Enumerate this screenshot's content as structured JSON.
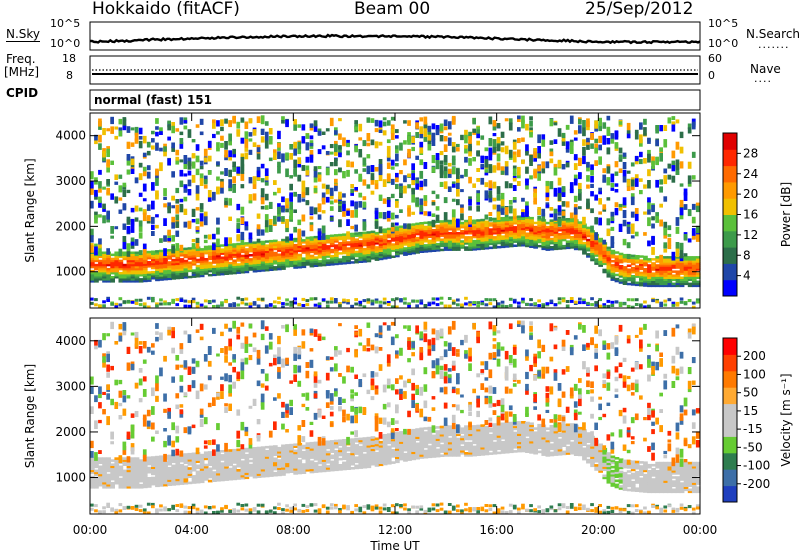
{
  "header": {
    "station": "Hokkaido (fitACF)",
    "beam": "Beam 00",
    "date": "25/Sep/2012"
  },
  "sky_panel": {
    "left_label": "N.Sky",
    "right_label": "N.Search",
    "left_ticks": [
      "10^5",
      "10^0"
    ],
    "right_ticks": [
      "10^5",
      "10^0"
    ]
  },
  "freq_panel": {
    "left_label_line1": "Freq.",
    "left_label_line2": "[MHz]",
    "right_label": "Nave",
    "left_ticks": [
      "18",
      "8"
    ],
    "right_ticks": [
      "60",
      "0"
    ]
  },
  "cpid_panel": {
    "label": "CPID",
    "value": "normal (fast) 151"
  },
  "chart_data": [
    {
      "type": "heatmap",
      "name": "power",
      "ylabel": "Slant Range [km]",
      "ylim": [
        200,
        4500
      ],
      "y_ticks": [
        1000,
        2000,
        3000,
        4000
      ],
      "colorbar_title": "Power [dB]",
      "colorbar_ticks": [
        "28",
        "24",
        "20",
        "16",
        "12",
        "8",
        "4"
      ],
      "colorbar_colors": [
        "#0000ff",
        "#1f46a8",
        "#2c6e49",
        "#3c9a4a",
        "#5ac03a",
        "#f0c000",
        "#ff9a00",
        "#ff6a00",
        "#ff2800",
        "#e00000"
      ],
      "data_hours": [
        0,
        1,
        2,
        3,
        4,
        5,
        6,
        7,
        8,
        9,
        10,
        11,
        12,
        13,
        14,
        15,
        16,
        17,
        18,
        19,
        19.5,
        20,
        20.5,
        21,
        22,
        23,
        24
      ],
      "band_center_km": [
        1150,
        1150,
        1150,
        1200,
        1250,
        1300,
        1350,
        1400,
        1450,
        1500,
        1550,
        1600,
        1700,
        1800,
        1850,
        1850,
        1900,
        1950,
        1850,
        1900,
        1750,
        1500,
        1200,
        1100,
        1050,
        1050,
        1050
      ]
    },
    {
      "type": "heatmap",
      "name": "velocity",
      "ylabel": "Slant Range [km]",
      "ylim": [
        200,
        4500
      ],
      "y_ticks": [
        1000,
        2000,
        3000,
        4000
      ],
      "colorbar_title": "Velocity [m s⁻¹]",
      "colorbar_ticks": [
        "200",
        "100",
        "50",
        "15",
        "-15",
        "-50",
        "-100",
        "-200"
      ],
      "colorbar_colors": [
        "#1f3fbf",
        "#3d6fa8",
        "#2e7d4f",
        "#66cc33",
        "#c8c8c8",
        "#c8c8c8",
        "#ffaa33",
        "#ff7a00",
        "#ff4000",
        "#ff0000"
      ]
    }
  ],
  "x_axis": {
    "title": "Time UT",
    "ticks": [
      "00:00",
      "04:00",
      "08:00",
      "12:00",
      "16:00",
      "20:00",
      "00:00"
    ]
  }
}
